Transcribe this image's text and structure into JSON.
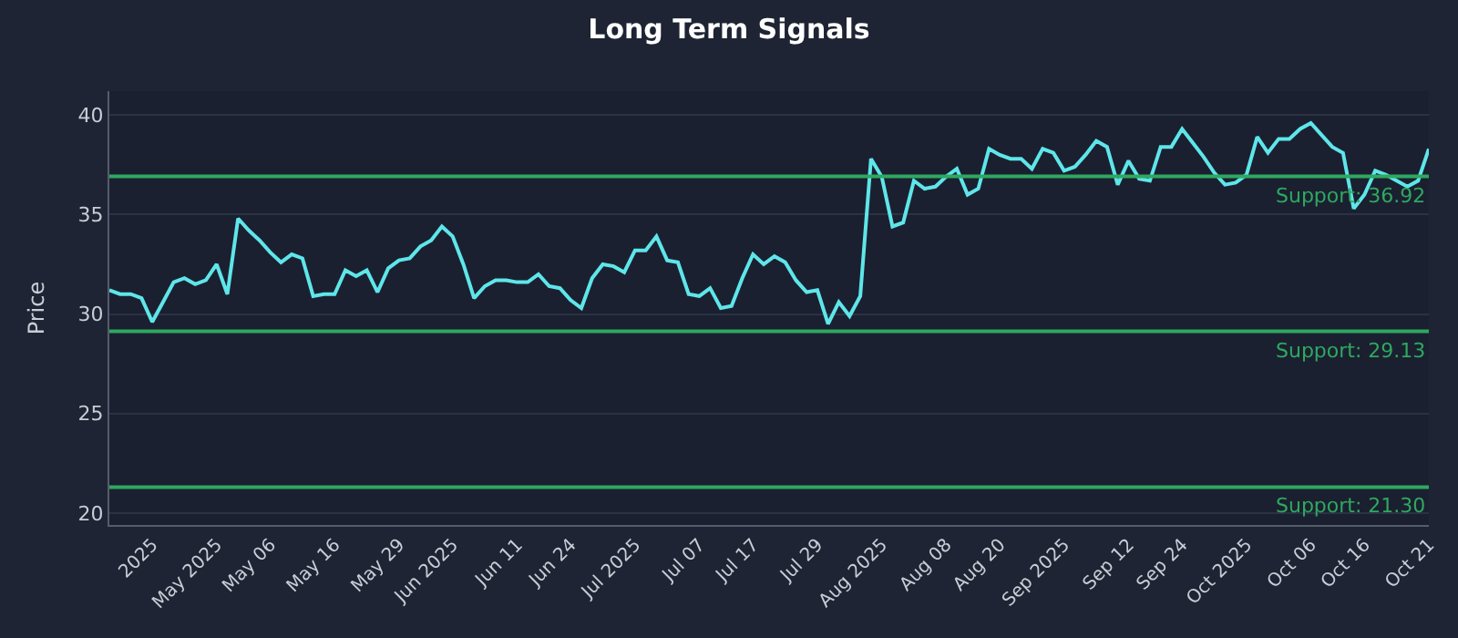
{
  "chart_data": {
    "type": "line",
    "title": "Long Term Signals",
    "ylabel": "Price",
    "categories": [
      null,
      null,
      null,
      null,
      "2025",
      null,
      null,
      null,
      null,
      null,
      "May 2025",
      null,
      null,
      null,
      null,
      "May 06",
      null,
      null,
      null,
      null,
      null,
      "May 16",
      null,
      null,
      null,
      null,
      null,
      "May 29",
      null,
      null,
      null,
      null,
      "Jun 2025",
      null,
      null,
      null,
      null,
      null,
      "Jun 11",
      null,
      null,
      null,
      null,
      "Jun 24",
      null,
      null,
      null,
      null,
      null,
      "Jul 2025",
      null,
      null,
      null,
      null,
      null,
      "Jul 07",
      null,
      null,
      null,
      null,
      "Jul 17",
      null,
      null,
      null,
      null,
      null,
      "Jul 29",
      null,
      null,
      null,
      null,
      null,
      "Aug 2025",
      null,
      null,
      null,
      null,
      null,
      "Aug 08",
      null,
      null,
      null,
      null,
      "Aug 20",
      null,
      null,
      null,
      null,
      null,
      "Sep 2025",
      null,
      null,
      null,
      null,
      null,
      "Sep 12",
      null,
      null,
      null,
      null,
      "Sep 24",
      null,
      null,
      null,
      null,
      null,
      "Oct 2025",
      null,
      null,
      null,
      null,
      null,
      "Oct 06",
      null,
      null,
      null,
      null,
      "Oct 16",
      null,
      null,
      null,
      null,
      null,
      "Oct 21"
    ],
    "series": [
      {
        "color": "#5ee6ea",
        "values": [
          31.2,
          31.0,
          31.0,
          30.8,
          29.6,
          30.6,
          31.6,
          31.8,
          31.5,
          31.7,
          32.5,
          31.0,
          34.8,
          34.2,
          33.7,
          33.1,
          32.6,
          33.0,
          32.8,
          30.9,
          31.0,
          31.0,
          32.2,
          31.9,
          32.2,
          31.1,
          32.3,
          32.7,
          32.8,
          33.4,
          33.7,
          34.4,
          33.9,
          32.5,
          30.8,
          31.4,
          31.7,
          31.7,
          31.6,
          31.6,
          32.0,
          31.4,
          31.3,
          30.7,
          30.3,
          31.8,
          32.5,
          32.4,
          32.1,
          33.2,
          33.2,
          33.9,
          32.7,
          32.6,
          31.0,
          30.9,
          31.3,
          30.3,
          30.4,
          31.8,
          33.0,
          32.5,
          32.9,
          32.6,
          31.7,
          31.1,
          31.2,
          29.5,
          30.6,
          29.9,
          30.9,
          37.8,
          36.9,
          34.4,
          34.6,
          36.7,
          36.3,
          36.4,
          36.9,
          37.3,
          36.0,
          36.3,
          38.3,
          38.0,
          37.8,
          37.8,
          37.3,
          38.3,
          38.1,
          37.2,
          37.4,
          38.0,
          38.7,
          38.4,
          36.5,
          37.7,
          36.8,
          36.7,
          38.4,
          38.4,
          39.3,
          38.6,
          37.9,
          37.1,
          36.5,
          36.6,
          37.0,
          38.9,
          38.1,
          38.8,
          38.8,
          39.3,
          39.6,
          39.0,
          38.4,
          38.1,
          35.3,
          36.0,
          37.2,
          37.0,
          36.7,
          36.4,
          36.7,
          38.3
        ]
      }
    ],
    "ylim": [
      19.4,
      41.2
    ],
    "yticks": [
      20,
      25,
      30,
      35,
      40
    ],
    "grid": "y",
    "marker": "none",
    "line_style": "solid",
    "ref_lines": [
      {
        "axis": "y",
        "value": 36.92,
        "label": "Support: 36.92",
        "color": "#2ea860"
      },
      {
        "axis": "y",
        "value": 29.13,
        "label": "Support: 29.13",
        "color": "#2ea860"
      },
      {
        "axis": "y",
        "value": 21.3,
        "label": "Support: 21.30",
        "color": "#2ea860"
      }
    ]
  }
}
